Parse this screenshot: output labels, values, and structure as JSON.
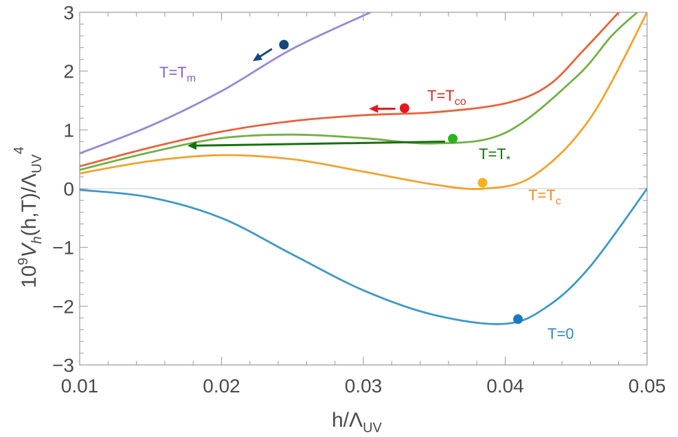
{
  "chart_data": {
    "type": "line",
    "title": "",
    "xlabel": {
      "main": "h/Λ",
      "sub": "UV"
    },
    "ylabel": {
      "prefix": "10",
      "exp": "9",
      "V": "V",
      "h": "h",
      "args": "(h,T)/Λ",
      "sub": "UV",
      "pow": "4"
    },
    "xlim": [
      0.01,
      0.05
    ],
    "ylim": [
      -3,
      3
    ],
    "x_ticks": [
      "0.01",
      "0.02",
      "0.03",
      "0.04",
      "0.05"
    ],
    "y_ticks": [
      "3",
      "2",
      "1",
      "0",
      "−1",
      "−2",
      "−3"
    ],
    "grid": false,
    "series": [
      {
        "name": "T=T_m",
        "label_main": "T=T",
        "label_sub": "m",
        "color": "#9a86d6",
        "x": [
          0.01,
          0.015,
          0.02,
          0.025,
          0.0305
        ],
        "y": [
          0.6,
          1.07,
          1.66,
          2.38,
          3.0
        ],
        "marker": [
          0.0244,
          2.45
        ],
        "arrow": {
          "color": "#134a7a",
          "from": [
            0.0235,
            2.37
          ],
          "to": [
            0.0222,
            2.17
          ]
        }
      },
      {
        "name": "T=T_co",
        "label_main": "T=T",
        "label_sub": "co",
        "color": "#e8613a",
        "x": [
          0.01,
          0.015,
          0.02,
          0.025,
          0.03,
          0.035,
          0.04,
          0.043,
          0.0455,
          0.048
        ],
        "y": [
          0.38,
          0.7,
          0.97,
          1.15,
          1.25,
          1.3,
          1.45,
          1.75,
          2.35,
          3.0
        ],
        "marker": [
          0.0329,
          1.37
        ],
        "arrow": {
          "color": "#e3191d",
          "from": [
            0.0322,
            1.36
          ],
          "to": [
            0.0304,
            1.36
          ]
        }
      },
      {
        "name": "T=T_*",
        "label_main": "T=T",
        "label_sub": "*",
        "color": "#72b043",
        "x": [
          0.01,
          0.015,
          0.02,
          0.025,
          0.03,
          0.035,
          0.04,
          0.045,
          0.0475,
          0.0493
        ],
        "y": [
          0.32,
          0.62,
          0.86,
          0.92,
          0.86,
          0.77,
          0.95,
          1.9,
          2.6,
          3.0
        ],
        "marker": [
          0.0363,
          0.85
        ],
        "arrow": {
          "color": "#17700f",
          "from": [
            0.0357,
            0.8
          ],
          "to": [
            0.0176,
            0.73
          ]
        }
      },
      {
        "name": "T=T_c",
        "label_main": "T=T",
        "label_sub": "c",
        "color": "#f2a22d",
        "x": [
          0.01,
          0.015,
          0.02,
          0.025,
          0.03,
          0.035,
          0.0385,
          0.042,
          0.046,
          0.05
        ],
        "y": [
          0.26,
          0.47,
          0.57,
          0.5,
          0.29,
          0.07,
          0.0,
          0.22,
          1.2,
          3.0
        ],
        "marker": [
          0.0384,
          0.1
        ]
      },
      {
        "name": "T=0",
        "label_main": "T=0",
        "label_sub": "",
        "color": "#3d98c8",
        "x": [
          0.01,
          0.015,
          0.02,
          0.025,
          0.03,
          0.035,
          0.04,
          0.043,
          0.046,
          0.05
        ],
        "y": [
          -0.02,
          -0.15,
          -0.5,
          -1.12,
          -1.73,
          -2.15,
          -2.3,
          -2.0,
          -1.32,
          0.0
        ],
        "marker": [
          0.0409,
          -2.22
        ]
      }
    ],
    "reference_line": {
      "y": 0,
      "color": "#d6d6d6"
    }
  }
}
